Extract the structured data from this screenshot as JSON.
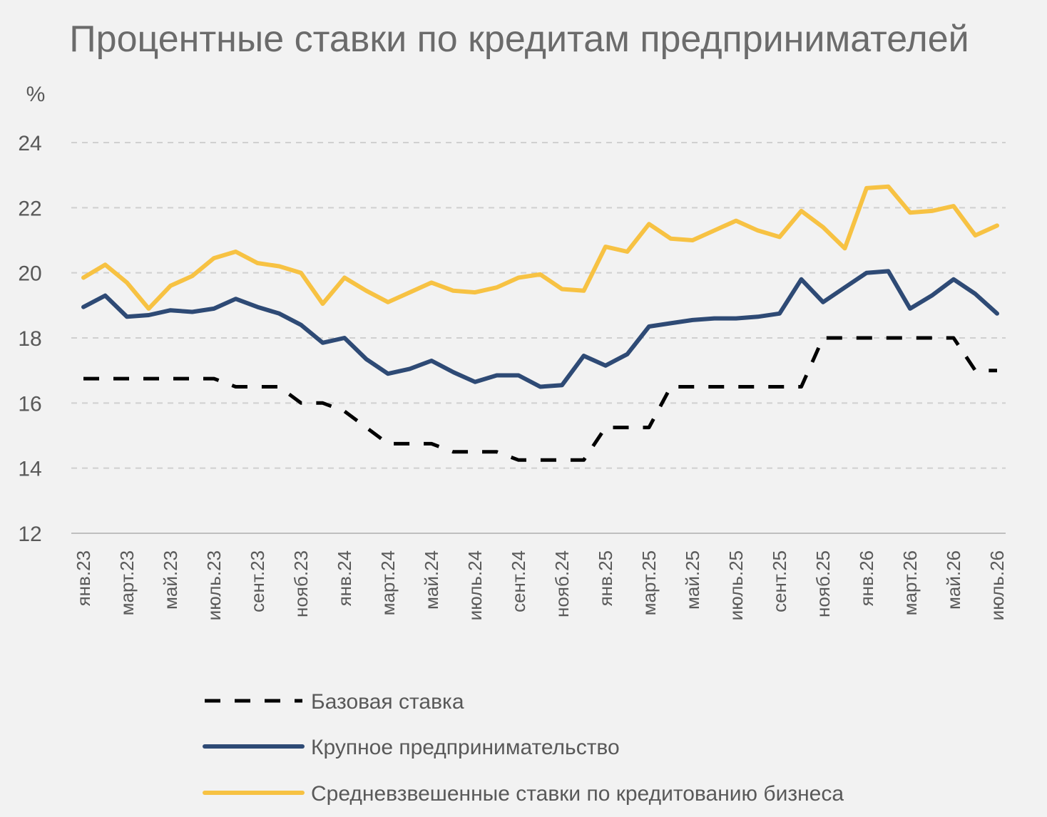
{
  "chart_data": {
    "type": "line",
    "title": "Процентные ставки по кредитам предпринимателей",
    "ylabel": "%",
    "xlabel": "",
    "ylim": [
      12,
      24
    ],
    "yticks": [
      12,
      14,
      16,
      18,
      20,
      22,
      24
    ],
    "grid": true,
    "legend_position": "bottom",
    "x": [
      "янв.23",
      "февр.23",
      "март.23",
      "апр.23",
      "май.23",
      "июнь.23",
      "июль.23",
      "авг.23",
      "сент.23",
      "окт.23",
      "нояб.23",
      "дек.23",
      "янв.24",
      "февр.24",
      "март.24",
      "апр.24",
      "май.24",
      "июнь.24",
      "июль.24",
      "авг.24",
      "сент.24",
      "окт.24",
      "нояб.24",
      "дек.24",
      "янв.25",
      "февр.25",
      "март.25",
      "апр.25",
      "май.25",
      "июнь.25",
      "июль.25",
      "авг.25",
      "сент.25",
      "окт.25",
      "нояб.25",
      "дек.25",
      "янв.26",
      "февр.26",
      "март.26",
      "апр.26",
      "май.26",
      "июнь.26",
      "июль.26"
    ],
    "xtick_labels": [
      "янв.23",
      "март.23",
      "май.23",
      "июль.23",
      "сент.23",
      "нояб.23",
      "янв.24",
      "март.24",
      "май.24",
      "июль.24",
      "сент.24",
      "нояб.24",
      "янв.25",
      "март.25",
      "май.25",
      "июль.25",
      "сент.25",
      "нояб.25",
      "янв.26",
      "март.26",
      "май.26",
      "июль.26"
    ],
    "series": [
      {
        "name": "Базовая ставка",
        "color": "#000000",
        "style": "dashed",
        "values": [
          16.75,
          16.75,
          16.75,
          16.75,
          16.75,
          16.75,
          16.75,
          16.5,
          16.5,
          16.5,
          16.0,
          16.0,
          15.75,
          15.25,
          14.75,
          14.75,
          14.75,
          14.5,
          14.5,
          14.5,
          14.25,
          14.25,
          14.25,
          14.25,
          15.25,
          15.25,
          15.25,
          16.5,
          16.5,
          16.5,
          16.5,
          16.5,
          16.5,
          16.5,
          18.0,
          18.0,
          18.0,
          18.0,
          18.0,
          18.0,
          18.0,
          17.0,
          17.0
        ]
      },
      {
        "name": "Крупное предпринимательство",
        "color": "#2e4a75",
        "style": "solid",
        "values": [
          18.95,
          19.3,
          18.65,
          18.7,
          18.85,
          18.8,
          18.9,
          19.2,
          18.95,
          18.75,
          18.4,
          17.85,
          18.0,
          17.35,
          16.9,
          17.05,
          17.3,
          16.95,
          16.65,
          16.85,
          16.85,
          16.5,
          16.55,
          17.45,
          17.15,
          17.5,
          18.35,
          18.45,
          18.55,
          18.6,
          18.6,
          18.65,
          18.75,
          19.8,
          19.1,
          19.55,
          20.0,
          20.05,
          18.9,
          19.3,
          19.8,
          19.35,
          18.75
        ]
      },
      {
        "name": "Средневзвешенные ставки по кредитованию бизнеса",
        "color": "#f7c243",
        "style": "solid",
        "values": [
          19.85,
          20.25,
          19.7,
          18.9,
          19.6,
          19.9,
          20.45,
          20.65,
          20.3,
          20.2,
          20.0,
          19.05,
          19.85,
          19.45,
          19.1,
          19.4,
          19.7,
          19.45,
          19.4,
          19.55,
          19.85,
          19.95,
          19.5,
          19.45,
          20.8,
          20.65,
          21.5,
          21.05,
          21.0,
          21.3,
          21.6,
          21.3,
          21.1,
          21.9,
          21.4,
          20.75,
          22.6,
          22.65,
          21.85,
          21.9,
          22.05,
          21.15,
          21.45
        ]
      }
    ]
  }
}
